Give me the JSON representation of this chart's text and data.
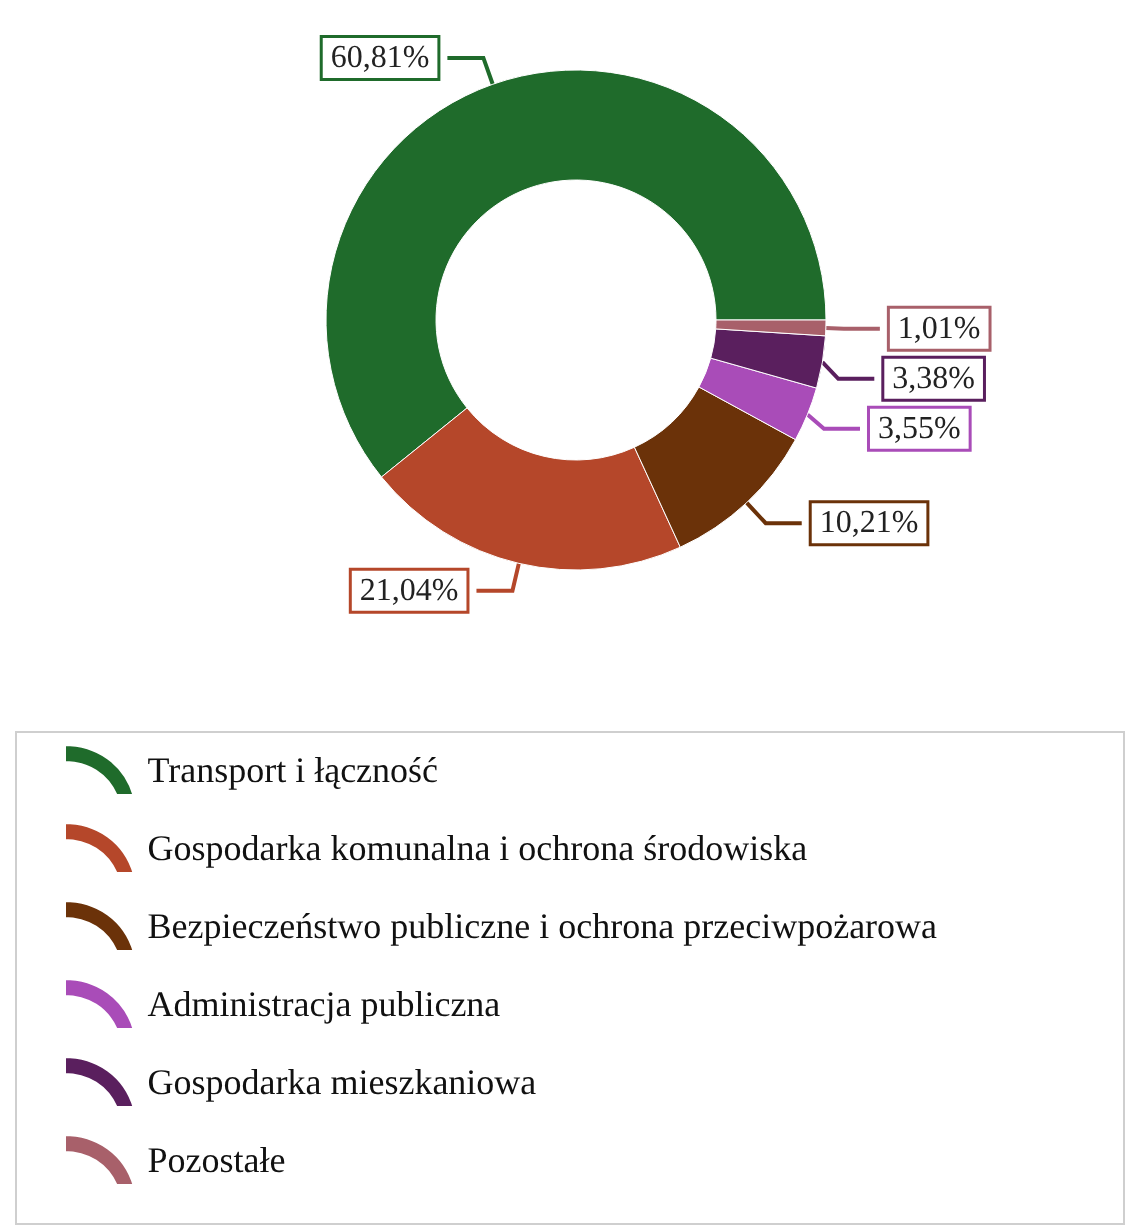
{
  "chart_data": {
    "type": "donut",
    "categories": [
      "Transport i łączność",
      "Gospodarka komunalna i ochrona środowiska",
      "Bezpieczeństwo publiczne i ochrona przeciwpożarowa",
      "Administracja publiczna",
      "Gospodarka mieszkaniowa",
      "Pozostałe"
    ],
    "values": [
      60.81,
      21.04,
      10.21,
      3.55,
      3.38,
      1.01
    ],
    "colors": [
      "#1f6b2b",
      "#b5472a",
      "#6b3209",
      "#a94cb8",
      "#5a1f5e",
      "#a8606a"
    ],
    "value_labels": [
      "60,81%",
      "21,04%",
      "10,21%",
      "3,55%",
      "3,38%",
      "1,01%"
    ],
    "legend": "bottom"
  }
}
